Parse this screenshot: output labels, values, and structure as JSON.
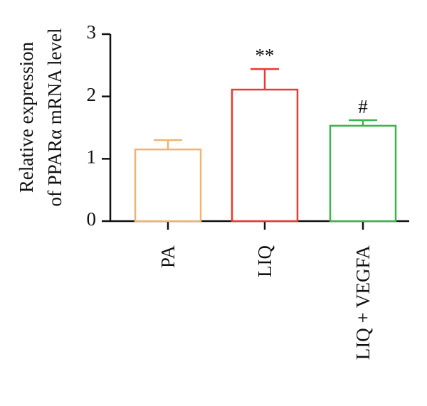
{
  "chart_data": {
    "type": "bar",
    "y_label": [
      "Relative expression",
      "of PPARα mRNA level"
    ],
    "categories": [
      "PA",
      "LIQ",
      "LIQ + VEGFA"
    ],
    "values": [
      1.15,
      2.11,
      1.53
    ],
    "errors": [
      0.15,
      0.33,
      0.09
    ],
    "colors": [
      "#f2b36f",
      "#e83a2e",
      "#3db54a"
    ],
    "annotations": [
      {
        "label": "**",
        "x": "LIQ"
      },
      {
        "label": "#",
        "x": "LIQ + VEGFA"
      }
    ],
    "ylim": [
      0,
      3
    ],
    "yticks": [
      0,
      1,
      2,
      3
    ]
  }
}
